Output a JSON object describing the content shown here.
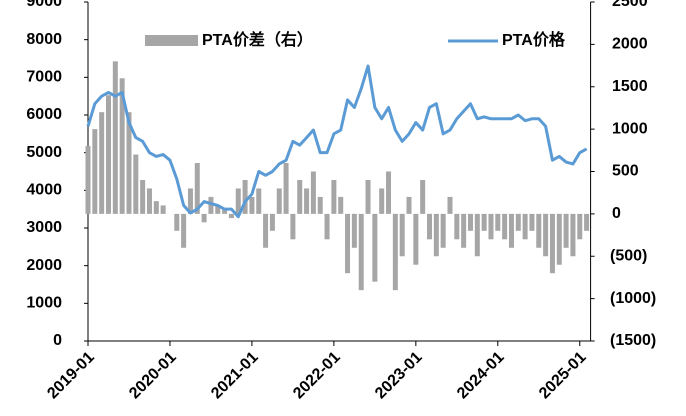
{
  "chart_data": {
    "type": "line_bar",
    "x": [
      "2019-01",
      "2019-02",
      "2019-03",
      "2019-04",
      "2019-05",
      "2019-06",
      "2019-07",
      "2019-08",
      "2019-09",
      "2019-10",
      "2019-11",
      "2019-12",
      "2020-01",
      "2020-02",
      "2020-03",
      "2020-04",
      "2020-05",
      "2020-06",
      "2020-07",
      "2020-08",
      "2020-09",
      "2020-10",
      "2020-11",
      "2020-12",
      "2021-01",
      "2021-02",
      "2021-03",
      "2021-04",
      "2021-05",
      "2021-06",
      "2021-07",
      "2021-08",
      "2021-09",
      "2021-10",
      "2021-11",
      "2021-12",
      "2022-01",
      "2022-02",
      "2022-03",
      "2022-04",
      "2022-05",
      "2022-06",
      "2022-07",
      "2022-08",
      "2022-09",
      "2022-10",
      "2022-11",
      "2022-12",
      "2023-01",
      "2023-02",
      "2023-03",
      "2023-04",
      "2023-05",
      "2023-06",
      "2023-07",
      "2023-08",
      "2023-09",
      "2023-10",
      "2023-11",
      "2023-12",
      "2024-01",
      "2024-02",
      "2024-03",
      "2024-04",
      "2024-05",
      "2024-06",
      "2024-07",
      "2024-08",
      "2024-09",
      "2024-10",
      "2024-11",
      "2024-12",
      "2025-01",
      "2025-02"
    ],
    "series": [
      {
        "name": "PTA价差（右）",
        "color": "#a6a6a6",
        "axis": "y2",
        "kind": "bar",
        "values": [
          800,
          1000,
          1200,
          1400,
          1800,
          1600,
          1200,
          700,
          400,
          300,
          150,
          100,
          0,
          -200,
          -400,
          300,
          600,
          -100,
          200,
          100,
          50,
          -50,
          300,
          400,
          200,
          300,
          -400,
          -200,
          300,
          600,
          -300,
          400,
          300,
          500,
          200,
          -300,
          400,
          200,
          -700,
          -400,
          -900,
          400,
          -800,
          300,
          500,
          -900,
          -500,
          200,
          -600,
          400,
          -300,
          -500,
          -400,
          200,
          -300,
          -400,
          -200,
          -500,
          -200,
          -300,
          -200,
          -300,
          -400,
          -200,
          -300,
          -200,
          -400,
          -500,
          -700,
          -600,
          -400,
          -500,
          -300,
          -200
        ]
      },
      {
        "name": "PTA价格",
        "color": "#5b9bd5",
        "axis": "y",
        "kind": "line",
        "values": [
          5700,
          6300,
          6500,
          6600,
          6500,
          6600,
          5800,
          5400,
          5300,
          5000,
          4900,
          4950,
          4800,
          4300,
          3600,
          3400,
          3500,
          3700,
          3650,
          3600,
          3500,
          3500,
          3300,
          3700,
          3900,
          4500,
          4400,
          4500,
          4700,
          4800,
          5300,
          5200,
          5400,
          5600,
          5000,
          5000,
          5500,
          5600,
          6400,
          6200,
          6700,
          7300,
          6200,
          5900,
          6200,
          5600,
          5300,
          5500,
          5800,
          5600,
          6200,
          6300,
          5500,
          5600,
          5900,
          6100,
          6300,
          5900,
          5950,
          5900,
          5900,
          5900,
          5900,
          6000,
          5850,
          5900,
          5900,
          5700,
          4800,
          4900,
          4750,
          4700,
          5000,
          5100
        ]
      }
    ],
    "xticks": [
      "2019-01",
      "2020-01",
      "2021-01",
      "2022-01",
      "2023-01",
      "2024-01",
      "2025-01"
    ],
    "ylim": [
      0,
      9000
    ],
    "yticks": [
      0,
      1000,
      2000,
      3000,
      4000,
      5000,
      6000,
      7000,
      8000,
      9000
    ],
    "y2lim": [
      -1500,
      2500
    ],
    "y2ticks": [
      {
        "value": -1500,
        "label": "(1500)"
      },
      {
        "value": -1000,
        "label": "(1000)"
      },
      {
        "value": -500,
        "label": "(500)"
      },
      0,
      500,
      1000,
      1500,
      2000,
      2500
    ],
    "y2_negative_label_color": "#ff0000"
  }
}
